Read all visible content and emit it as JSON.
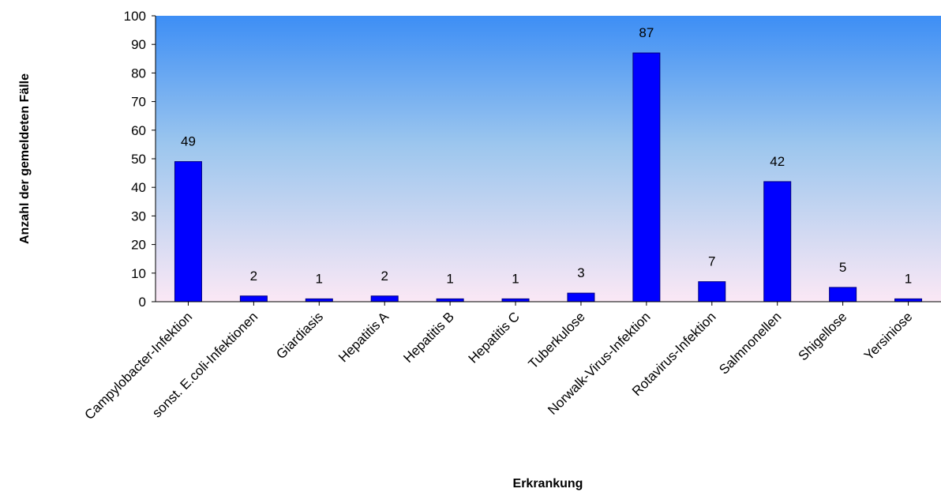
{
  "chart_data": {
    "type": "bar",
    "categories": [
      "Campylobacter-Infektion",
      "sonst. E.coli-Infektionen",
      "Giardiasis",
      "Hepatitis A",
      "Hepatitis B",
      "Hepatitis C",
      "Tuberkulose",
      "Norwalk-Virus-Infektion",
      "Rotavirus-Infektion",
      "Salmnonellen",
      "Shigellose",
      "Yersiniose"
    ],
    "values": [
      49,
      2,
      1,
      2,
      1,
      1,
      3,
      87,
      7,
      42,
      5,
      1
    ],
    "data_labels": [
      "49",
      "2",
      "1",
      "2",
      "1",
      "1",
      "3",
      "87",
      "7",
      "42",
      "5",
      "1"
    ],
    "xlabel": "Erkrankung",
    "ylabel": "Anzahl der gemeldeten Fälle",
    "ylim": [
      0,
      100
    ],
    "yticks": [
      0,
      10,
      20,
      30,
      40,
      50,
      60,
      70,
      80,
      90,
      100
    ],
    "grid": false,
    "legend": "none",
    "colors": {
      "bar": "#0000ff",
      "bar_edge": "#000080",
      "plot_bg_top": "#3d8ef5",
      "plot_bg_mid": "#9cc6ee",
      "plot_bg_bottom": "#fbe8f5"
    }
  }
}
